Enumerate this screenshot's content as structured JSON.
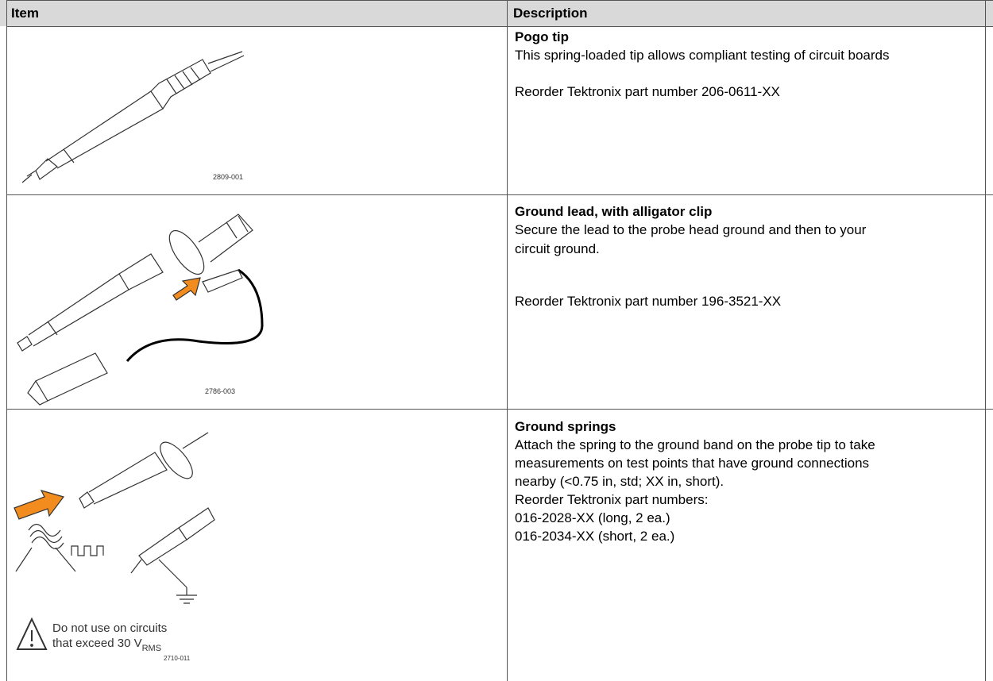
{
  "header": {
    "item": "Item",
    "description": "Description"
  },
  "rows": [
    {
      "figure_label": "2809-001",
      "title": "Pogo tip",
      "lines": [
        "This spring-loaded tip allows compliant testing of circuit boards"
      ],
      "part": "Reorder Tektronix part number 206-0611-XX"
    },
    {
      "figure_label": "2786-003",
      "title": "Ground lead, with alligator clip",
      "lines": [
        "Secure the lead to the probe head ground and then to your",
        "circuit ground."
      ],
      "part": "Reorder Tektronix part number 196-3521-XX"
    },
    {
      "figure_label": "2710-011",
      "title": "Ground springs",
      "lines": [
        "Attach the spring to the ground band on the probe tip to take",
        "measurements on test points that have ground connections",
        "nearby (<0.75 in, std; XX in, short).",
        "Reorder Tektronix part numbers:",
        "016-2028-XX (long, 2 ea.)",
        "016-2034-XX (short, 2 ea.)"
      ],
      "warning": {
        "line1": "Do not use on circuits",
        "line2": "that exceed 30 V",
        "subscript": "RMS"
      }
    }
  ]
}
